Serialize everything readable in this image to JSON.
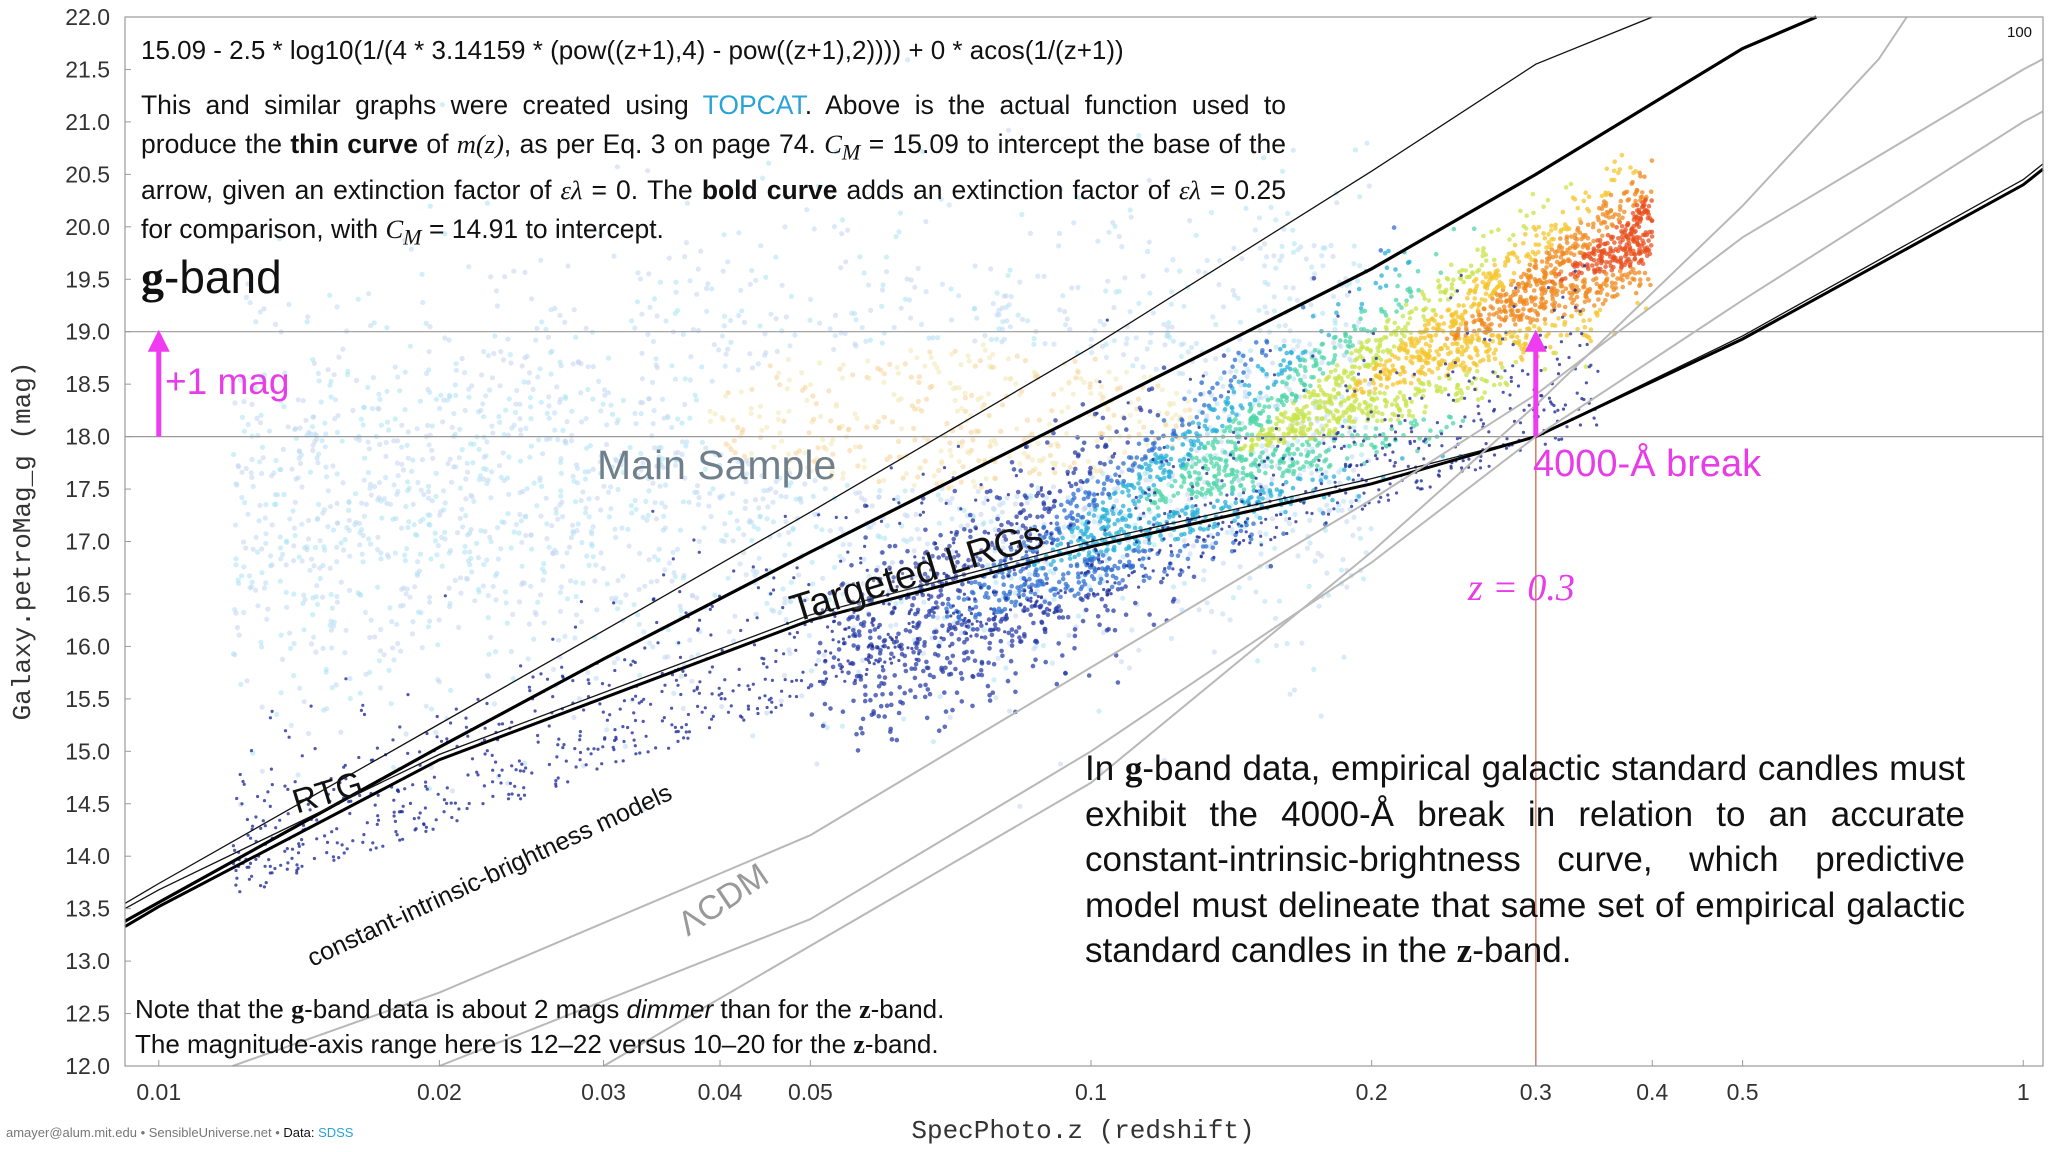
{
  "chart_data": {
    "type": "scatter",
    "xlabel": "SpecPhoto.z (redshift)",
    "ylabel": "Galaxy.petroMag_g (mag)",
    "x_scale": "log",
    "xlim": [
      0.0092,
      1.05
    ],
    "ylim": [
      12.0,
      22.0
    ],
    "x_ticks": [
      0.01,
      0.02,
      0.03,
      0.04,
      0.05,
      0.1,
      0.2,
      0.3,
      0.4,
      0.5,
      1
    ],
    "x_tick_labels": [
      "0.01",
      "0.02",
      "0.03",
      "0.04",
      "0.05",
      "0.1",
      "0.2",
      "0.3",
      "0.4",
      "0.5",
      "1"
    ],
    "y_ticks": [
      12.0,
      12.5,
      13.0,
      13.5,
      14.0,
      14.5,
      15.0,
      15.5,
      16.0,
      16.5,
      17.0,
      17.5,
      18.0,
      18.5,
      19.0,
      19.5,
      20.0,
      20.5,
      21.0,
      21.5,
      22.0
    ],
    "y_tick_labels": [
      "12.0",
      "12.5",
      "13.0",
      "13.5",
      "14.0",
      "14.5",
      "15.0",
      "15.5",
      "16.0",
      "16.5",
      "17.0",
      "17.5",
      "18.0",
      "18.5",
      "19.0",
      "19.5",
      "20.0",
      "20.5",
      "21.0",
      "21.5",
      "22.0"
    ],
    "reference_lines": {
      "horizontal": [
        18.0,
        19.0
      ],
      "vertical": [
        0.3
      ]
    },
    "grid": false,
    "series": [
      {
        "name": "thin curve m(z)",
        "kind": "line",
        "points": [
          [
            0.0092,
            13.55
          ],
          [
            0.01,
            13.74
          ],
          [
            0.02,
            15.26
          ],
          [
            0.03,
            16.15
          ],
          [
            0.05,
            17.28
          ],
          [
            0.1,
            18.85
          ],
          [
            0.2,
            20.53
          ],
          [
            0.3,
            21.55
          ],
          [
            0.4,
            22.0
          ]
        ]
      },
      {
        "name": "bold curve m(z)",
        "kind": "line",
        "points": [
          [
            0.0092,
            13.38
          ],
          [
            0.01,
            13.56
          ],
          [
            0.02,
            15.04
          ],
          [
            0.03,
            15.88
          ],
          [
            0.05,
            16.9
          ],
          [
            0.1,
            18.25
          ],
          [
            0.2,
            19.6
          ],
          [
            0.3,
            20.5
          ],
          [
            0.5,
            21.7
          ],
          [
            0.6,
            22.0
          ]
        ]
      },
      {
        "name": "RTG",
        "kind": "line",
        "points": [
          [
            0.0092,
            13.5
          ],
          [
            0.01,
            13.68
          ],
          [
            0.02,
            14.97
          ],
          [
            0.05,
            16.3
          ],
          [
            0.1,
            17.0
          ],
          [
            0.2,
            17.6
          ],
          [
            0.3,
            18.0
          ],
          [
            0.5,
            18.96
          ],
          [
            1,
            20.45
          ],
          [
            1.05,
            20.6
          ]
        ]
      },
      {
        "name": "constant-intrinsic-brightness model",
        "kind": "line",
        "points": [
          [
            0.0092,
            13.33
          ],
          [
            0.01,
            13.52
          ],
          [
            0.02,
            14.92
          ],
          [
            0.05,
            16.25
          ],
          [
            0.1,
            16.95
          ],
          [
            0.2,
            17.55
          ],
          [
            0.3,
            18.0
          ],
          [
            0.5,
            18.93
          ],
          [
            1,
            20.4
          ],
          [
            1.05,
            20.55
          ]
        ]
      },
      {
        "name": "ΛCDM",
        "kind": "line",
        "points": [
          [
            0.012,
            12.0
          ],
          [
            0.02,
            12.7
          ],
          [
            0.05,
            14.2
          ],
          [
            0.1,
            15.8
          ],
          [
            0.2,
            17.4
          ],
          [
            0.3,
            18.4
          ],
          [
            0.5,
            19.9
          ],
          [
            1,
            21.5
          ],
          [
            1.05,
            21.6
          ]
        ]
      },
      {
        "name": "ref line",
        "kind": "line",
        "points": [
          [
            0.02,
            12.0
          ],
          [
            0.05,
            13.4
          ],
          [
            0.1,
            15.0
          ],
          [
            0.2,
            16.8
          ],
          [
            0.3,
            18.0
          ],
          [
            0.5,
            19.3
          ],
          [
            1,
            21.0
          ],
          [
            1.05,
            21.1
          ]
        ]
      },
      {
        "name": "ref line",
        "kind": "line",
        "points": [
          [
            0.03,
            12.0
          ],
          [
            0.1,
            14.7
          ],
          [
            0.2,
            16.9
          ],
          [
            0.3,
            18.3
          ],
          [
            0.5,
            20.2
          ],
          [
            0.7,
            21.6
          ],
          [
            0.75,
            22.0
          ]
        ]
      }
    ],
    "density_clusters": [
      {
        "name": "Main Sample",
        "z_range": [
          0.012,
          0.2
        ],
        "mag_range": [
          14.0,
          19.5
        ],
        "peak": [
          0.07,
          18.2
        ]
      },
      {
        "name": "Targeted LRGs",
        "z_range": [
          0.05,
          0.4
        ],
        "mag_range": [
          15.2,
          20.5
        ],
        "peak": [
          0.33,
          20.0
        ]
      }
    ],
    "annotations": {
      "arrow_left": {
        "x": 0.01,
        "y_from": 18.0,
        "y_to": 19.0,
        "label": "+1 mag"
      },
      "arrow_right": {
        "x": 0.3,
        "y_from": 18.0,
        "y_to": 19.0,
        "label": "4000-Å break"
      },
      "z_marker": "z = 0.3",
      "main_sample": "Main Sample",
      "targeted_lrgs": "Targeted LRGs",
      "rtg": "RTG",
      "cib_models": "constant-intrinsic-brightness models",
      "lcdm": "ΛCDM"
    }
  },
  "text": {
    "formula": "15.09 - 2.5 * log10(1/(4 * 3.14159 * (pow((z+1),4) - pow((z+1),2)))) + 0 * acos(1/(z+1))",
    "desc_1": "This and similar graphs were created using ",
    "desc_link": "TOPCAT",
    "desc_2": ". Above is the actual function used to produce the ",
    "desc_thin": "thin curve",
    "desc_3": " of ",
    "desc_mz": "m(z)",
    "desc_4": ", as per Eq. 3 on page 74. ",
    "desc_cm1": "C",
    "desc_cm1_sub": "M",
    "desc_5": " = 15.09 to intercept the base of the arrow, given an extinction factor of ",
    "desc_eps1": "ελ",
    "desc_6": " = 0. The ",
    "desc_bold": "bold curve",
    "desc_7": " adds an extinction factor of ",
    "desc_eps2": "ελ",
    "desc_8": " = 0.25 for comparison, with ",
    "desc_cm2": "C",
    "desc_cm2_sub": "M",
    "desc_9": " = 14.91 to intercept.",
    "band_letter": "g",
    "band_suffix": "-band",
    "claim_1": "In ",
    "claim_g": "g",
    "claim_2": "-band data, empirical galactic standard candles must exhibit the 4000-Å break in relation to an accurate constant-intrinsic-brightness curve, which predictive model must delineate that same set of empirical galactic standard candles in the ",
    "claim_z": "z",
    "claim_3": "-band.",
    "note_1": "Note that the ",
    "note_g": "g",
    "note_2": "-band data is about 2 mags ",
    "note_dimmer": "dimmer",
    "note_3": " than for the ",
    "note_z1": "z",
    "note_4": "-band.",
    "note_5": "The magnitude-axis range here is 12–22 versus 10–20 for the ",
    "note_z2": "z",
    "note_6": "-band.",
    "credit_author": "amayer@alum.mit.edu • SensibleUniverse.net • ",
    "credit_data": "Data: ",
    "credit_src": "SDSS",
    "corner": "100"
  },
  "colors": {
    "arrow": "#f03cf0",
    "z_line": "#d9826e",
    "link": "#29a3d6",
    "ref_lines": "#b8b8b8",
    "density_low": "#c9d6ee",
    "density_high": "#e8501e"
  }
}
